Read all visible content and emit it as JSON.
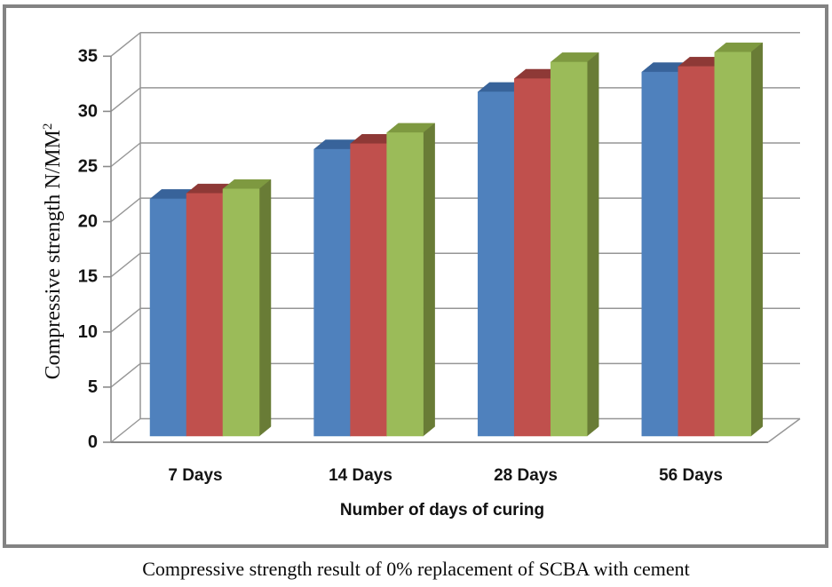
{
  "figure": {
    "caption": "Compressive strength result of 0% replacement of SCBA with cement"
  },
  "chart_data": {
    "type": "bar",
    "style": "3d-clustered-column",
    "title": "",
    "caption": "Compressive strength result of 0% replacement of SCBA with cement",
    "categories": [
      "7 Days",
      "14 Days",
      "28 Days",
      "56 Days"
    ],
    "series": [
      {
        "name": "series-1-blue",
        "color": "#4F81BD",
        "top_color": "#38639A",
        "side_color": "#2E5484",
        "values": [
          21.5,
          26.0,
          31.2,
          33.0
        ]
      },
      {
        "name": "series-2-red",
        "color": "#C0504D",
        "top_color": "#8E3936",
        "side_color": "#9C423F",
        "values": [
          22.0,
          26.5,
          32.4,
          33.5
        ]
      },
      {
        "name": "series-3-green",
        "color": "#9BBB59",
        "top_color": "#7E9940",
        "side_color": "#697C36",
        "values": [
          22.4,
          27.5,
          33.9,
          34.8
        ]
      }
    ],
    "xlabel": "Number of days of curing",
    "ylabel": "Compressive strength N/MM²",
    "ylabel_main": "Compressive strength N/MM",
    "ylabel_sup": "2",
    "ylim": [
      0,
      35
    ],
    "yticks": [
      0,
      5,
      10,
      15,
      20,
      25,
      30,
      35
    ],
    "grid": true,
    "legend": "none",
    "palette": {
      "frame_border": "#838383",
      "gridline": "#969696",
      "axis_line": "#8A8A8A",
      "text": "#141414",
      "background": "#FFFFFF"
    }
  }
}
